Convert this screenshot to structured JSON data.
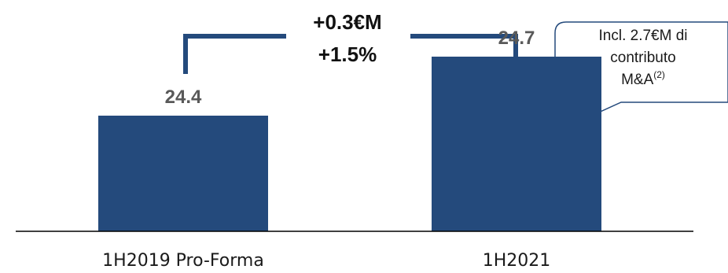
{
  "chart_data": {
    "type": "bar",
    "categories": [
      "1H2019 Pro-Forma",
      "1H2021"
    ],
    "values": [
      24.4,
      24.7
    ],
    "value_labels": [
      "24.4",
      "24.7"
    ],
    "title": "",
    "xlabel": "",
    "ylabel": "",
    "colors": {
      "bar": "#244a7c",
      "bracket": "#244a7c",
      "axis": "#000000",
      "label": "#595959"
    },
    "annotations": {
      "delta_abs": "+0.3€M",
      "delta_pct": "+1.5%",
      "callout_lines": [
        "Incl. 2.7€M di",
        "contributo"
      ],
      "callout_last_main": "M&A",
      "callout_last_sup": "(2)"
    }
  }
}
